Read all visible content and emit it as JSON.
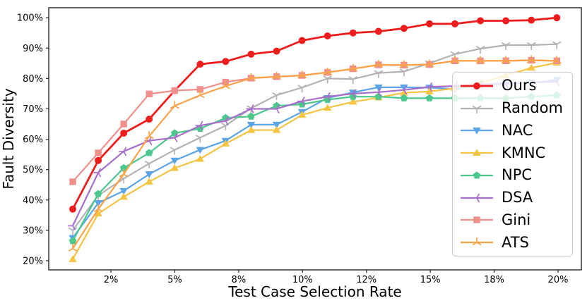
{
  "chart_data": {
    "type": "line",
    "title": "",
    "xlabel": "Test Case Selection Rate",
    "ylabel": "Fault Diversity",
    "x": [
      1,
      2,
      3,
      4,
      5,
      6,
      7,
      8,
      9,
      10,
      11,
      12,
      13,
      14,
      15,
      16,
      17,
      18,
      19,
      20
    ],
    "x_unit": "%",
    "x_tick_labels": [
      "2%",
      "5%",
      "8%",
      "10%",
      "12%",
      "15%",
      "18%",
      "20%"
    ],
    "y_ticks": [
      20,
      30,
      40,
      50,
      60,
      70,
      80,
      90,
      100
    ],
    "y_tick_labels": [
      "20%",
      "30%",
      "40%",
      "50%",
      "60%",
      "70%",
      "80%",
      "90%",
      "100%"
    ],
    "ylim": [
      17,
      103.3
    ],
    "grid": false,
    "legend_position": "center right",
    "series": [
      {
        "name": "Ours",
        "color": "#ee1d1d",
        "marker": "circle",
        "line_width": 2.8,
        "values": [
          37,
          53,
          62,
          66.6,
          76,
          84.7,
          85.6,
          88,
          89,
          92.5,
          94,
          95,
          95.5,
          96.5,
          98,
          98,
          99,
          99,
          99.2,
          100
        ]
      },
      {
        "name": "Random",
        "color": "#b3b3b3",
        "marker": "tri-down-thin",
        "line_width": 2.2,
        "values": [
          30,
          41.5,
          47,
          52,
          56.5,
          60.5,
          64.5,
          70.2,
          74.5,
          77,
          80,
          79.8,
          81.8,
          82.3,
          85,
          88,
          89.8,
          91,
          91,
          91.3
        ]
      },
      {
        "name": "NAC",
        "color": "#5ba4e5",
        "marker": "triangle-down",
        "line_width": 2.2,
        "values": [
          27.5,
          39,
          43,
          48.5,
          53,
          56.5,
          59.5,
          64.8,
          64.8,
          69,
          73.6,
          75.4,
          77.1,
          77.1,
          77,
          76.5,
          78,
          78.5,
          78.5,
          79.6
        ]
      },
      {
        "name": "KMNC",
        "color": "#f6c445",
        "marker": "triangle-up",
        "line_width": 2.2,
        "values": [
          20.5,
          35.5,
          41,
          46,
          50.5,
          53.5,
          58.5,
          63,
          63,
          68,
          70.3,
          72.3,
          73.7,
          75.3,
          75.7,
          76.8,
          78.5,
          81,
          83.5,
          85.2
        ]
      },
      {
        "name": "NPC",
        "color": "#4cc88d",
        "marker": "pentagon",
        "line_width": 2.2,
        "values": [
          26.5,
          42,
          50.5,
          55.5,
          62,
          63.5,
          67,
          67.5,
          71,
          71.5,
          73,
          74,
          74,
          73.5,
          73.5,
          73.5,
          73.5,
          73.5,
          74,
          74.5
        ]
      },
      {
        "name": "DSA",
        "color": "#a76fc9",
        "marker": "tri-left-thin",
        "line_width": 2.2,
        "values": [
          31.5,
          49,
          56,
          59.5,
          60.5,
          64.5,
          66,
          70,
          70,
          72.5,
          74,
          75,
          75.5,
          76.2,
          77.2,
          77.5,
          78,
          78.2,
          78.6,
          79
        ]
      },
      {
        "name": "Gini",
        "color": "#f0908d",
        "marker": "square",
        "line_width": 2.2,
        "values": [
          46,
          55.5,
          65,
          74.9,
          76,
          76.4,
          78.8,
          80.1,
          80.6,
          81,
          82,
          83.2,
          84.5,
          84.4,
          84.6,
          85.8,
          85.8,
          85.8,
          86,
          85.8
        ]
      },
      {
        "name": "ATS",
        "color": "#f8a348",
        "marker": "tri-up-thin",
        "line_width": 2.2,
        "values": [
          24,
          37,
          48.5,
          61,
          71,
          74.5,
          77.5,
          80.1,
          80.6,
          81,
          82,
          83.2,
          84.5,
          84.4,
          84.6,
          85.8,
          85.8,
          85.8,
          86,
          85.8
        ]
      }
    ]
  }
}
